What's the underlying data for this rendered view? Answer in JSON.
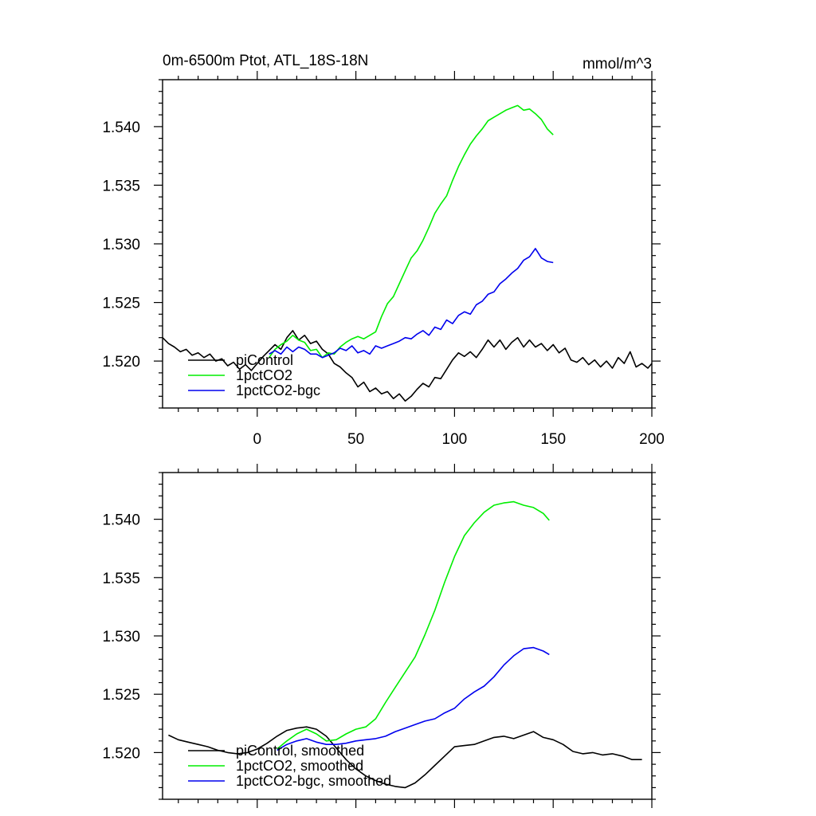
{
  "chart_data": [
    {
      "panel": "top",
      "type": "line",
      "title_left": "0m-6500m Ptot, ATL_18S-18N",
      "title_right": "mmol/m^3",
      "xlabel": "",
      "ylabel": "",
      "xlim": [
        -48,
        200
      ],
      "ylim": [
        1.516,
        1.544
      ],
      "xticks": [
        0,
        50,
        100,
        150,
        200
      ],
      "yticks": [
        1.52,
        1.525,
        1.53,
        1.535,
        1.54
      ],
      "xtick_labels": [
        "0",
        "50",
        "100",
        "150",
        "200"
      ],
      "ytick_labels": [
        "1.520",
        "1.525",
        "1.530",
        "1.535",
        "1.540"
      ],
      "legend_position": "lower-left",
      "series": [
        {
          "name": "piControl",
          "color": "#000000",
          "x": [
            -48,
            -45,
            -42,
            -39,
            -36,
            -33,
            -30,
            -27,
            -24,
            -21,
            -18,
            -15,
            -12,
            -9,
            -6,
            -3,
            0,
            3,
            6,
            9,
            12,
            15,
            18,
            21,
            24,
            27,
            30,
            33,
            36,
            39,
            42,
            45,
            48,
            51,
            54,
            57,
            60,
            63,
            66,
            69,
            72,
            75,
            78,
            81,
            84,
            87,
            90,
            93,
            96,
            99,
            102,
            105,
            108,
            111,
            114,
            117,
            120,
            123,
            126,
            129,
            132,
            135,
            138,
            141,
            144,
            147,
            150,
            153,
            156,
            159,
            162,
            165,
            168,
            171,
            174,
            177,
            180,
            183,
            186,
            189,
            192,
            195,
            198,
            200
          ],
          "y": [
            1.522,
            1.5215,
            1.5212,
            1.5208,
            1.521,
            1.5205,
            1.5207,
            1.5203,
            1.5206,
            1.52,
            1.5202,
            1.5196,
            1.5199,
            1.5193,
            1.5197,
            1.5192,
            1.5198,
            1.5204,
            1.5209,
            1.5214,
            1.521,
            1.522,
            1.5226,
            1.5218,
            1.5222,
            1.5215,
            1.5217,
            1.521,
            1.5206,
            1.5198,
            1.5195,
            1.519,
            1.5186,
            1.5178,
            1.5182,
            1.5174,
            1.5177,
            1.5172,
            1.5174,
            1.5168,
            1.5172,
            1.5166,
            1.517,
            1.5176,
            1.5181,
            1.5178,
            1.5186,
            1.5185,
            1.5193,
            1.5201,
            1.5207,
            1.5204,
            1.5208,
            1.5203,
            1.521,
            1.5218,
            1.5212,
            1.5218,
            1.521,
            1.5216,
            1.522,
            1.5212,
            1.5218,
            1.5212,
            1.5215,
            1.5209,
            1.5214,
            1.5207,
            1.5211,
            1.5201,
            1.5199,
            1.5203,
            1.5197,
            1.5201,
            1.5195,
            1.52,
            1.5194,
            1.5203,
            1.5198,
            1.5208,
            1.5195,
            1.5198,
            1.5194,
            1.5198
          ]
        },
        {
          "name": "1pctCO2",
          "color": "#00ee00",
          "x": [
            6,
            9,
            12,
            15,
            18,
            21,
            24,
            27,
            30,
            33,
            36,
            39,
            42,
            45,
            48,
            51,
            54,
            57,
            60,
            63,
            66,
            69,
            72,
            75,
            78,
            81,
            84,
            87,
            90,
            93,
            96,
            99,
            102,
            105,
            108,
            111,
            114,
            117,
            120,
            123,
            126,
            129,
            132,
            135,
            138,
            141,
            144,
            147,
            150
          ],
          "y": [
            1.5203,
            1.521,
            1.5214,
            1.5217,
            1.5222,
            1.5218,
            1.5216,
            1.5209,
            1.521,
            1.5203,
            1.5207,
            1.5206,
            1.5212,
            1.5216,
            1.5219,
            1.5221,
            1.5219,
            1.5222,
            1.5225,
            1.5238,
            1.5249,
            1.5255,
            1.5266,
            1.5277,
            1.5288,
            1.5294,
            1.5303,
            1.5314,
            1.5326,
            1.5334,
            1.5341,
            1.5354,
            1.5366,
            1.5376,
            1.5385,
            1.5392,
            1.5398,
            1.5405,
            1.5408,
            1.5411,
            1.5414,
            1.5416,
            1.5418,
            1.5414,
            1.5415,
            1.5411,
            1.5406,
            1.5398,
            1.5393
          ]
        },
        {
          "name": "1pctCO2-bgc",
          "color": "#0000ee",
          "x": [
            6,
            9,
            12,
            15,
            18,
            21,
            24,
            27,
            30,
            33,
            36,
            39,
            42,
            45,
            48,
            51,
            54,
            57,
            60,
            63,
            66,
            69,
            72,
            75,
            78,
            81,
            84,
            87,
            90,
            93,
            96,
            99,
            102,
            105,
            108,
            111,
            114,
            117,
            120,
            123,
            126,
            129,
            132,
            135,
            138,
            141,
            144,
            147,
            150
          ],
          "y": [
            1.5206,
            1.5209,
            1.5206,
            1.5212,
            1.5208,
            1.5212,
            1.521,
            1.5206,
            1.5206,
            1.5203,
            1.5205,
            1.5207,
            1.5211,
            1.5209,
            1.5213,
            1.5207,
            1.5209,
            1.5206,
            1.5213,
            1.5211,
            1.5213,
            1.5215,
            1.5217,
            1.522,
            1.5219,
            1.5223,
            1.5226,
            1.5222,
            1.5229,
            1.5227,
            1.5235,
            1.5232,
            1.5239,
            1.5242,
            1.524,
            1.5248,
            1.5251,
            1.5257,
            1.5259,
            1.5266,
            1.527,
            1.5275,
            1.5279,
            1.5286,
            1.5289,
            1.5296,
            1.5288,
            1.5285,
            1.5284
          ]
        }
      ]
    },
    {
      "panel": "bottom",
      "type": "line",
      "xlim": [
        -48,
        200
      ],
      "ylim": [
        1.516,
        1.544
      ],
      "xticks": [
        0,
        50,
        100,
        150,
        200
      ],
      "yticks": [
        1.52,
        1.525,
        1.53,
        1.535,
        1.54
      ],
      "ytick_labels": [
        "1.520",
        "1.525",
        "1.530",
        "1.535",
        "1.540"
      ],
      "legend_position": "lower-left",
      "series": [
        {
          "name": "piControl, smoothed",
          "color": "#000000",
          "x": [
            -45,
            -40,
            -35,
            -30,
            -25,
            -20,
            -15,
            -10,
            -5,
            0,
            5,
            10,
            15,
            20,
            25,
            30,
            35,
            40,
            45,
            50,
            55,
            60,
            65,
            70,
            75,
            80,
            85,
            90,
            95,
            100,
            105,
            110,
            115,
            120,
            125,
            130,
            135,
            140,
            145,
            150,
            155,
            160,
            165,
            170,
            175,
            180,
            185,
            190,
            195
          ],
          "y": [
            1.5215,
            1.5211,
            1.5209,
            1.5207,
            1.5205,
            1.5202,
            1.52,
            1.5199,
            1.52,
            1.5203,
            1.5208,
            1.5214,
            1.5219,
            1.5221,
            1.5222,
            1.522,
            1.5214,
            1.5204,
            1.5194,
            1.5186,
            1.518,
            1.5176,
            1.5173,
            1.5171,
            1.517,
            1.5174,
            1.5181,
            1.5189,
            1.5197,
            1.5205,
            1.5206,
            1.5207,
            1.521,
            1.5213,
            1.5214,
            1.5212,
            1.5215,
            1.5218,
            1.5213,
            1.5211,
            1.5207,
            1.5201,
            1.5199,
            1.52,
            1.5198,
            1.5199,
            1.5197,
            1.5194,
            1.5194
          ]
        },
        {
          "name": "1pctCO2, smoothed",
          "color": "#00ee00",
          "x": [
            10,
            15,
            20,
            25,
            30,
            35,
            40,
            45,
            50,
            55,
            60,
            65,
            70,
            75,
            80,
            85,
            90,
            95,
            100,
            105,
            110,
            115,
            120,
            125,
            130,
            135,
            140,
            145,
            148
          ],
          "y": [
            1.5203,
            1.521,
            1.5216,
            1.522,
            1.5216,
            1.521,
            1.5211,
            1.5216,
            1.522,
            1.5222,
            1.5229,
            1.5243,
            1.5256,
            1.5269,
            1.5282,
            1.5301,
            1.5322,
            1.5346,
            1.5368,
            1.5386,
            1.5397,
            1.5406,
            1.5412,
            1.5414,
            1.5415,
            1.5412,
            1.541,
            1.5405,
            1.5399
          ]
        },
        {
          "name": "1pctCO2-bgc, smoothed",
          "color": "#0000ee",
          "x": [
            10,
            15,
            20,
            25,
            30,
            35,
            40,
            45,
            50,
            55,
            60,
            65,
            70,
            75,
            80,
            85,
            90,
            95,
            100,
            105,
            110,
            115,
            120,
            125,
            130,
            135,
            140,
            145,
            148
          ],
          "y": [
            1.5202,
            1.5207,
            1.521,
            1.5212,
            1.5209,
            1.5207,
            1.5207,
            1.5208,
            1.521,
            1.5211,
            1.5212,
            1.5214,
            1.5218,
            1.5221,
            1.5224,
            1.5227,
            1.5229,
            1.5234,
            1.5238,
            1.5246,
            1.5252,
            1.5257,
            1.5265,
            1.5275,
            1.5283,
            1.5289,
            1.529,
            1.5287,
            1.5284
          ]
        }
      ]
    }
  ]
}
